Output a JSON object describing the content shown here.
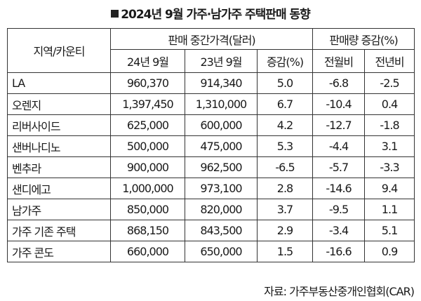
{
  "title": "2024년 9월 가주·남가주 주택판매 동향",
  "headers": {
    "region": "지역/카운티",
    "price_group": "판매 중간가격(달러)",
    "volume_group": "판매량 증감(%)",
    "sub": [
      "24년 9월",
      "23년 9월",
      "증감(%)",
      "전월비",
      "전년비"
    ]
  },
  "rows": [
    {
      "region": "LA",
      "cells": [
        "960,370",
        "914,340",
        "5.0",
        "-6.8",
        "-2.5"
      ]
    },
    {
      "region": "오렌지",
      "cells": [
        "1,397,450",
        "1,310,000",
        "6.7",
        "-10.4",
        "0.4"
      ]
    },
    {
      "region": "리버사이드",
      "cells": [
        "625,000",
        "600,000",
        "4.2",
        "-12.7",
        "-1.8"
      ]
    },
    {
      "region": "샌버나디노",
      "cells": [
        "500,000",
        "475,000",
        "5.3",
        "-4.4",
        "3.1"
      ]
    },
    {
      "region": "벤추라",
      "cells": [
        "900,000",
        "962,500",
        "-6.5",
        "-5.7",
        "-3.3"
      ]
    },
    {
      "region": "샌디에고",
      "cells": [
        "1,000,000",
        "973,100",
        "2.8",
        "-14.6",
        "9.4"
      ]
    },
    {
      "region": "남가주",
      "cells": [
        "850,000",
        "820,000",
        "3.7",
        "-9.5",
        "1.1"
      ]
    },
    {
      "region": "가주 기존 주택",
      "cells": [
        "868,150",
        "843,500",
        "2.9",
        "-3.4",
        "5.1"
      ]
    },
    {
      "region": "가주 콘도",
      "cells": [
        "660,000",
        "650,000",
        "1.5",
        "-16.6",
        "0.9"
      ]
    }
  ],
  "source": "자료: 가주부동산중개인협회(CAR)"
}
